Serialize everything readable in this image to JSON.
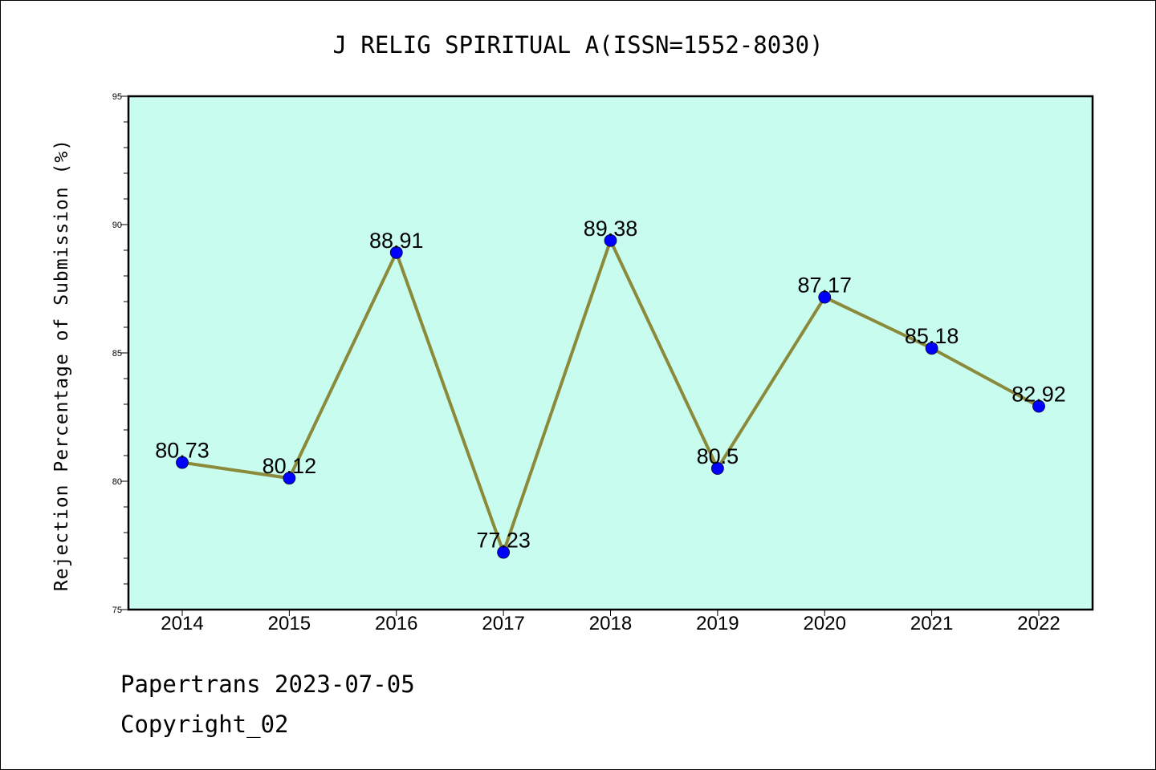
{
  "chart_data": {
    "type": "line",
    "title": "J RELIG SPIRITUAL A(ISSN=1552-8030)",
    "xlabel": "",
    "ylabel": "Rejection Percentage of Submission (%)",
    "categories": [
      "2014",
      "2015",
      "2016",
      "2017",
      "2018",
      "2019",
      "2020",
      "2021",
      "2022"
    ],
    "values": [
      80.73,
      80.12,
      88.91,
      77.23,
      89.38,
      80.5,
      87.17,
      85.18,
      82.92
    ],
    "data_labels": [
      "80.73",
      "80.12",
      "88.91",
      "77.23",
      "89.38",
      "80.5",
      "87.17",
      "85.18",
      "82.92"
    ],
    "ylim": [
      75,
      95
    ],
    "yticks": [
      "75",
      "80",
      "85",
      "90",
      "95"
    ],
    "grid": false,
    "colors": {
      "plot_background": "#c8fcee",
      "line": "#8b8a3a",
      "marker": "#0000ff"
    }
  },
  "footer": {
    "line1": "Papertrans 2023-07-05",
    "line2": "Copyright_02"
  }
}
